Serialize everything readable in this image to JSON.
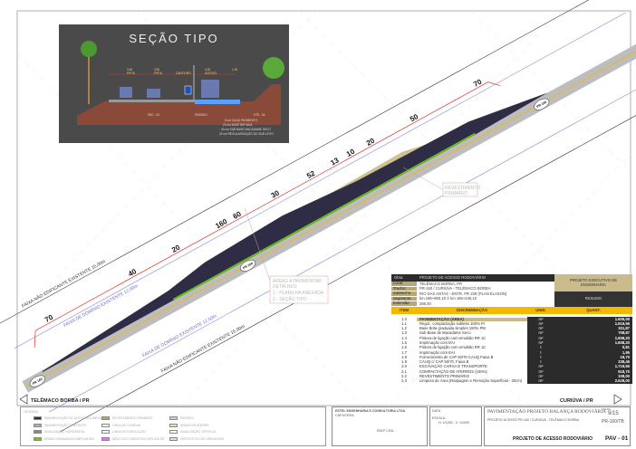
{
  "inset": {
    "title": "SEÇÃO TIPO",
    "lane1_width": "3.50",
    "lane1": "PISTA",
    "lane2_width": "3.50",
    "lane2": "PISTA",
    "median": "CANTEIRO",
    "access_width": "4.00",
    "access": "ACESSO",
    "shoulder_width": "1.00",
    "slope_left": "SSC - 04",
    "sidewalk": "PASSEIO",
    "slope_right": "STE - 04",
    "layers": [
      "5 cm CAUQ PAVIMENTO",
      "20 cm BASE BRITADA",
      "40 cm SUB BASE MACADAME SECO",
      "20 cm REGULARIZAÇÃO DO SUB LEITO"
    ]
  },
  "road": {
    "speed_labels": [
      "70",
      "40",
      "20",
      "160",
      "60",
      "30",
      "52",
      "13",
      "10",
      "20",
      "50",
      "70"
    ],
    "route_shield": "PR 160",
    "faixa_nao_edificante_top": "FAIXA NÃO EDIFICANTE EXISTENTE 15,00m",
    "faixa_dominio_top": "FAIXA DE DOMÍNIO EXISTENTE 12,50m",
    "faixa_dominio_bottom": "FAIXA DE DOMÍNIO EXISTENTE 12,50m",
    "faixa_nao_edificante_bottom": "FAIXA NÃO EDIFICANTE EXISTENTE 15,00m",
    "callout_areas": [
      "ÁREAS A PAVIMENTAR",
      "DETALHES:",
      "1 - PLANILHA ANEXADA",
      "2 - SEÇÃO TIPO"
    ],
    "callout_revestimento": [
      "REVESTIMENTO",
      "PRIMÁRIO"
    ],
    "city_left": "TELÊMACO BORBA / PR",
    "city_right": "CURIÚVA / PR"
  },
  "table": {
    "obra_label": "Obra:",
    "obra": "PROJETO DE ACESSO RODOVIÁRIO",
    "info": [
      {
        "k": "Local:",
        "v": "TELÊMACO BORBA, PR"
      },
      {
        "k": "Trecho:",
        "v": "PR-160 / CURIÚVA - TELÊMACO BORBA"
      },
      {
        "k": "Subtrecho:",
        "v": "RIO DAS ANTAS - ENTR. PR 239 (PLAN ELASON)"
      },
      {
        "k": "Segmento:",
        "v": "km 185+960,10  À  km 186+245,10"
      },
      {
        "k": "Extensão:",
        "v": "285,00"
      }
    ],
    "project_type": "PROJETO EXECUTIVO DE ENGENHARIA",
    "summary": "RESUMO",
    "columns": [
      "ITEM",
      "DISCRIMINAÇÃO",
      "UNID.",
      "QUANT."
    ],
    "rows": [
      {
        "item": "1.0",
        "desc": "PAVIMENTAÇÃO (ÁREA)",
        "unit": "m²",
        "qty": "1.605,00",
        "main": true
      },
      {
        "item": "1.1",
        "desc": "Regul., compactação subleito 100% PI",
        "unit": "m²",
        "qty": "1.919,56"
      },
      {
        "item": "1.2",
        "desc": "Base Brita graduada simples 100% PM",
        "unit": "m³",
        "qty": "331,87"
      },
      {
        "item": "1.3",
        "desc": "Sub Base de Macadame Seco",
        "unit": "m³",
        "qty": "708,87"
      },
      {
        "item": "1.4",
        "desc": "Pintura de ligação com emulsão RR 1C",
        "unit": "m²",
        "qty": "1.608,20"
      },
      {
        "item": "1.5",
        "desc": "Imprimação com EAI",
        "unit": "m²",
        "qty": "1.608,20"
      },
      {
        "item": "1.6",
        "desc": "Pintura de ligação com emulsão RR 1C",
        "unit": "t",
        "qty": "0,81"
      },
      {
        "item": "1.7",
        "desc": "Imprimação com EAI",
        "unit": "t",
        "qty": "1,95"
      },
      {
        "item": "1.8",
        "desc": "Fornecimento de CAP 50/70 CAUQ Faixa B",
        "unit": "t",
        "qty": "18,70"
      },
      {
        "item": "1.9",
        "desc": "CAUQ c/ CAP 50/70, Faixa B",
        "unit": "t",
        "qty": "238,45"
      },
      {
        "item": "2.0",
        "desc": "ESCAVAÇÃO CARGA E TRANSPORTE",
        "unit": "m³",
        "qty": "1.719,56"
      },
      {
        "item": "2.1",
        "desc": "COMPACTAÇÃO DE ATERROS (100%)",
        "unit": "m³",
        "qty": "618,70"
      },
      {
        "item": "2.2",
        "desc": "REVESTIMENTO PRIMÁRIO",
        "unit": "m²",
        "qty": "108,00"
      },
      {
        "item": "2.3",
        "desc": "Limpeza de Área (Raspagem e Remoção Superficial - 20cm)",
        "unit": "m²",
        "qty": "2.628,00"
      }
    ]
  },
  "legend": {
    "title": "LEGENDA",
    "items": [
      {
        "label": "PAVIMENTAÇÃO DE ACESSOS A IMPLANTAR",
        "color": "#2e2d45"
      },
      {
        "label": "PAVIMENTAÇÃO EXISTENTE",
        "color": "#b0b0b0"
      },
      {
        "label": "SINALIZAÇÃO HORIZONTAL",
        "color": "#888888"
      },
      {
        "label": "ÁREAS GRAMADAS A IMPLANTAR",
        "color": "#66cc00"
      },
      {
        "label": "REVESTIMENTO PRIMÁRIO",
        "color": "#b9a860"
      },
      {
        "label": "LINHA DE DOMÍNIO",
        "color": "#ffffff"
      },
      {
        "label": "LINHA DE EDIFICAÇÃO",
        "color": "#ffffff"
      },
      {
        "label": "MEIO-FIO E SARJETA A IMPLANTAR",
        "color": "#ff66ff"
      },
      {
        "label": "PASSEIO",
        "color": "#d0d0d0"
      },
      {
        "label": "ÁREAS DE ATERRO",
        "color": "#e8dcb0"
      },
      {
        "label": "SINALIZAÇÃO VERTICAL",
        "color": "#ffffff"
      },
      {
        "label": "DISPOSITIVO DE DRENAGEM",
        "color": "#e0e0e0"
      }
    ]
  },
  "title_block": {
    "company": "ESTEL ENGENHARIA E CONSULTORIA LTDA",
    "crea": "CNPJ/CREA",
    "responsible": "ENGº CIVIL",
    "scale_label": "ESCALA",
    "scale": "H: 1/1250 - V: 1/1000",
    "sheet_label": "FOLHA",
    "date_label": "DATA",
    "project_name": "PAVIMENTAÇÃO PROJETO BALANÇA RODOVIÁRIA",
    "sheet": "9/15",
    "highway": "PR-160/TB",
    "drawing_title": "PROJETO DE ACESSO RODOVIÁRIO",
    "drawing_code": "PAV - 01",
    "subtitle": "PROJETO ACESSO PR-160 / CURIÚVA - TELÊMACO BORBA"
  },
  "colors": {
    "asphalt": "#2e2d45",
    "shoulder": "#bdbdbd",
    "lane_edge": "#f5b800",
    "grass": "#66cc00",
    "right_of_way": "#e03030",
    "domain_line": "#8a8ae0",
    "inset_bg": "#4a4a4a",
    "table_header": "#f5b800"
  }
}
